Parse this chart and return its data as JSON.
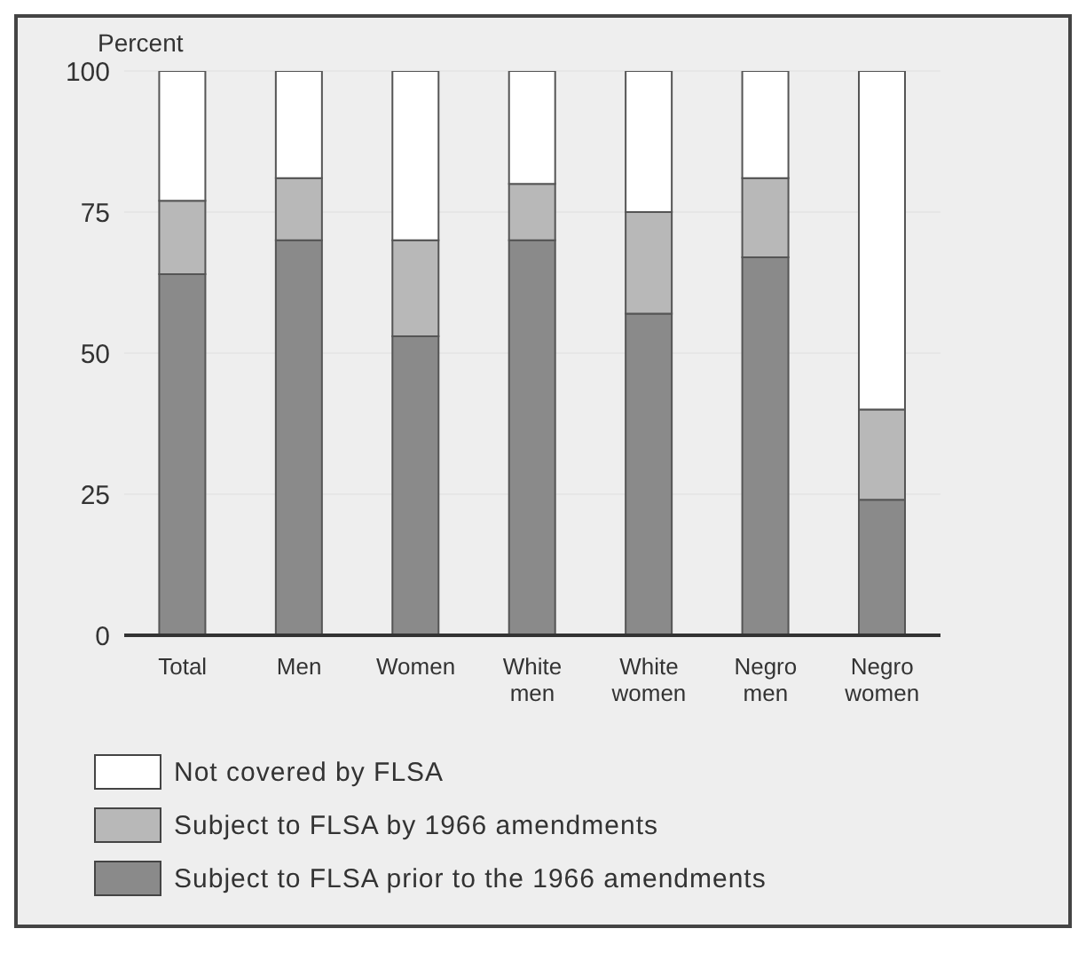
{
  "chart_data": {
    "type": "bar",
    "stacked": true,
    "ylabel": "Percent",
    "categories": [
      "Total",
      "Men",
      "Women",
      "White men",
      "White women",
      "Negro men",
      "Negro women"
    ],
    "series": [
      {
        "name": "Subject to FLSA prior to the 1966 amendments",
        "color": "#8a8a8a",
        "values": [
          64,
          70,
          53,
          70,
          57,
          67,
          24
        ]
      },
      {
        "name": "Subject to FLSA by 1966 amendments",
        "color": "#b8b8b8",
        "values": [
          13,
          11,
          17,
          10,
          18,
          14,
          16
        ]
      },
      {
        "name": "Not covered by FLSA",
        "color": "#ffffff",
        "values": [
          23,
          19,
          30,
          20,
          25,
          19,
          60
        ]
      }
    ],
    "ylim": [
      0,
      100
    ],
    "yticks": [
      0,
      25,
      50,
      75,
      100
    ],
    "grid": "y",
    "legend": "bottom"
  }
}
